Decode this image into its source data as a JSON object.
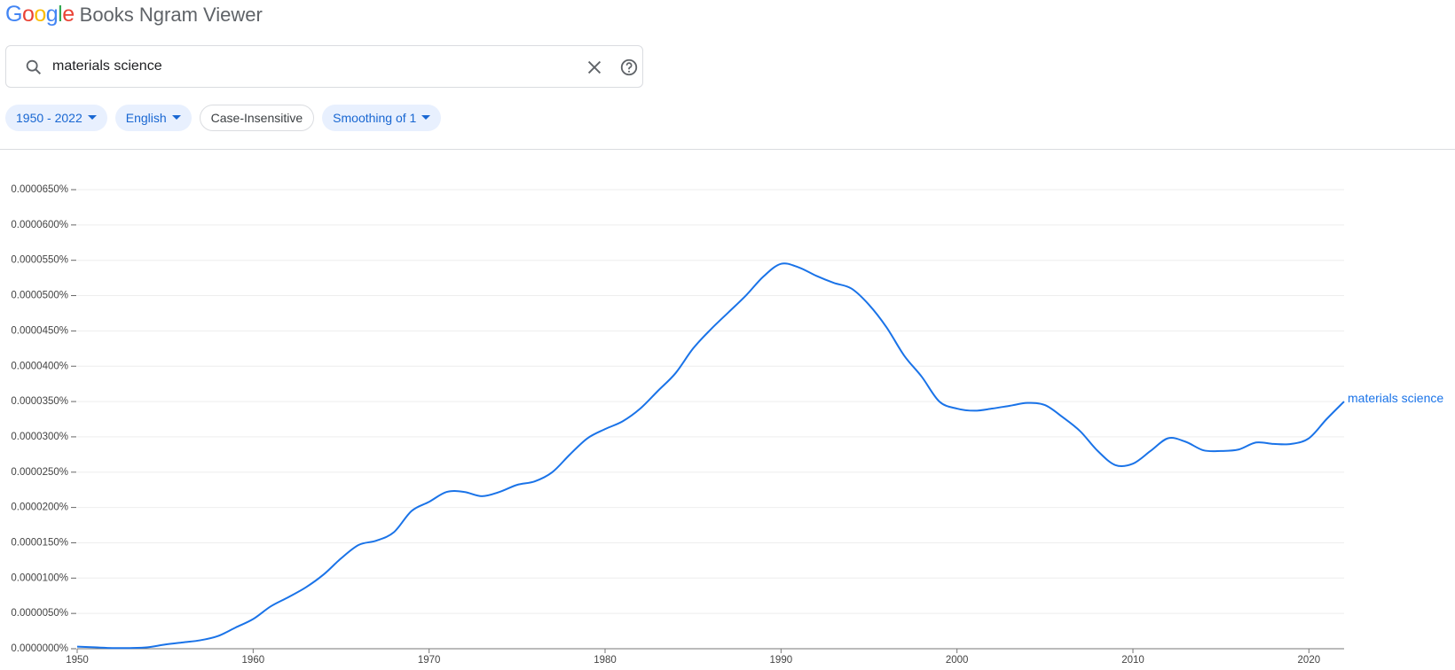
{
  "header": {
    "logo": "Google",
    "title": "Books Ngram Viewer"
  },
  "search": {
    "query": "materials science"
  },
  "chips": [
    "1950 - 2022",
    "English",
    "Case-Insensitive",
    "Smoothing of 1"
  ],
  "chart_data": {
    "type": "line",
    "x": [
      1950,
      1951,
      1952,
      1953,
      1954,
      1955,
      1956,
      1957,
      1958,
      1959,
      1960,
      1961,
      1962,
      1963,
      1964,
      1965,
      1966,
      1967,
      1968,
      1969,
      1970,
      1971,
      1972,
      1973,
      1974,
      1975,
      1976,
      1977,
      1978,
      1979,
      1980,
      1981,
      1982,
      1983,
      1984,
      1985,
      1986,
      1987,
      1988,
      1989,
      1990,
      1991,
      1992,
      1993,
      1994,
      1995,
      1996,
      1997,
      1998,
      1999,
      2000,
      2001,
      2002,
      2003,
      2004,
      2005,
      2006,
      2007,
      2008,
      2009,
      2010,
      2011,
      2012,
      2013,
      2014,
      2015,
      2016,
      2017,
      2018,
      2019,
      2020,
      2021,
      2022
    ],
    "series": [
      {
        "name": "materials science",
        "color": "#1a73e8",
        "values": [
          3e-07,
          2e-07,
          1e-07,
          1e-07,
          2e-07,
          6e-07,
          9e-07,
          1.2e-06,
          1.8e-06,
          3e-06,
          4.2e-06,
          6e-06,
          7.3e-06,
          8.7e-06,
          1.05e-05,
          1.28e-05,
          1.47e-05,
          1.53e-05,
          1.65e-05,
          1.95e-05,
          2.08e-05,
          2.22e-05,
          2.22e-05,
          2.16e-05,
          2.22e-05,
          2.32e-05,
          2.37e-05,
          2.5e-05,
          2.75e-05,
          2.98e-05,
          3.11e-05,
          3.22e-05,
          3.4e-05,
          3.65e-05,
          3.9e-05,
          4.25e-05,
          4.52e-05,
          4.76e-05,
          5e-05,
          5.27e-05,
          5.45e-05,
          5.4e-05,
          5.28e-05,
          5.18e-05,
          5.1e-05,
          4.87e-05,
          4.55e-05,
          4.15e-05,
          3.85e-05,
          3.5e-05,
          3.4e-05,
          3.37e-05,
          3.4e-05,
          3.44e-05,
          3.48e-05,
          3.45e-05,
          3.28e-05,
          3.08e-05,
          2.8e-05,
          2.6e-05,
          2.62e-05,
          2.8e-05,
          2.98e-05,
          2.93e-05,
          2.81e-05,
          2.8e-05,
          2.82e-05,
          2.92e-05,
          2.9e-05,
          2.9e-05,
          2.98e-05,
          3.25e-05,
          3.5e-05
        ]
      }
    ],
    "xlim": [
      1950,
      2022
    ],
    "xticks": [
      1950,
      1960,
      1970,
      1980,
      1990,
      2000,
      2010,
      2020
    ],
    "ylim": [
      0,
      6.5e-05
    ],
    "yticks": [
      {
        "value": 0,
        "label": "0.0000000%"
      },
      {
        "value": 5e-06,
        "label": "0.0000050%"
      },
      {
        "value": 1e-05,
        "label": "0.0000100%"
      },
      {
        "value": 1.5e-05,
        "label": "0.0000150%"
      },
      {
        "value": 2e-05,
        "label": "0.0000200%"
      },
      {
        "value": 2.5e-05,
        "label": "0.0000250%"
      },
      {
        "value": 3e-05,
        "label": "0.0000300%"
      },
      {
        "value": 3.5e-05,
        "label": "0.0000350%"
      },
      {
        "value": 4e-05,
        "label": "0.0000400%"
      },
      {
        "value": 4.5e-05,
        "label": "0.0000450%"
      },
      {
        "value": 5e-05,
        "label": "0.0000500%"
      },
      {
        "value": 5.5e-05,
        "label": "0.0000550%"
      },
      {
        "value": 6e-05,
        "label": "0.0000600%"
      },
      {
        "value": 6.5e-05,
        "label": "0.0000650%"
      }
    ],
    "grid": true
  }
}
